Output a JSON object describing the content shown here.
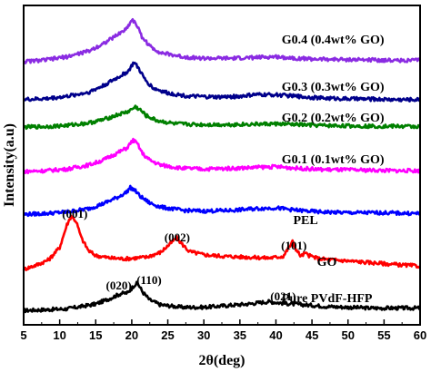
{
  "chart_data": {
    "type": "line",
    "xlabel": "2θ(deg)",
    "ylabel": "Intensity(a.u)",
    "xlim": [
      5,
      60
    ],
    "xticks": [
      "5",
      "10",
      "15",
      "20",
      "25",
      "30",
      "35",
      "40",
      "45",
      "50",
      "55",
      "60"
    ],
    "series": [
      {
        "name": "Pure PVdF-HFP",
        "color": "#000000",
        "offset": 0,
        "points": [
          [
            5,
            0.2
          ],
          [
            8,
            0.3
          ],
          [
            11,
            0.4
          ],
          [
            13,
            0.7
          ],
          [
            15,
            1.0
          ],
          [
            17,
            1.7
          ],
          [
            18.5,
            2.3
          ],
          [
            19.5,
            2.4
          ],
          [
            20.3,
            3.3
          ],
          [
            20.8,
            3.6
          ],
          [
            21.5,
            2.5
          ],
          [
            22.5,
            1.5
          ],
          [
            24,
            0.9
          ],
          [
            27,
            0.6
          ],
          [
            30,
            0.6
          ],
          [
            33,
            0.8
          ],
          [
            36,
            1.0
          ],
          [
            39,
            1.3
          ],
          [
            41,
            1.1
          ],
          [
            44,
            0.9
          ],
          [
            47,
            0.7
          ],
          [
            50,
            0.6
          ],
          [
            53,
            0.5
          ],
          [
            57,
            0.5
          ],
          [
            60,
            0.5
          ]
        ]
      },
      {
        "name": "GO",
        "color": "#ff0000",
        "offset": 5.0,
        "points": [
          [
            5,
            0.3
          ],
          [
            7,
            0.9
          ],
          [
            8.5,
            1.5
          ],
          [
            10,
            3.0
          ],
          [
            11,
            5.8
          ],
          [
            11.6,
            6.9
          ],
          [
            12.3,
            6.2
          ],
          [
            13,
            4.2
          ],
          [
            14,
            2.6
          ],
          [
            15,
            2.0
          ],
          [
            17,
            1.7
          ],
          [
            19,
            1.6
          ],
          [
            22,
            1.8
          ],
          [
            24,
            2.4
          ],
          [
            25.5,
            3.6
          ],
          [
            26.2,
            4.2
          ],
          [
            27,
            3.4
          ],
          [
            28,
            2.5
          ],
          [
            30,
            2.1
          ],
          [
            33,
            1.9
          ],
          [
            36,
            1.8
          ],
          [
            39,
            1.7
          ],
          [
            41,
            1.9
          ],
          [
            41.8,
            3.0
          ],
          [
            42.3,
            3.7
          ],
          [
            42.9,
            2.6
          ],
          [
            43.5,
            1.9
          ],
          [
            44,
            2.3
          ],
          [
            44.6,
            2.0
          ],
          [
            46,
            1.6
          ],
          [
            49,
            1.4
          ],
          [
            52,
            1.2
          ],
          [
            55,
            1.0
          ],
          [
            58,
            0.8
          ],
          [
            60,
            0.7
          ]
        ]
      },
      {
        "name": "PEL",
        "color": "#0000ff",
        "offset": 12.0,
        "points": [
          [
            5,
            0.1
          ],
          [
            8,
            0.2
          ],
          [
            11,
            0.4
          ],
          [
            14,
            0.8
          ],
          [
            16,
            1.4
          ],
          [
            18,
            2.2
          ],
          [
            19.2,
            2.8
          ],
          [
            19.8,
            3.4
          ],
          [
            20.4,
            3.1
          ],
          [
            21.2,
            2.3
          ],
          [
            22.5,
            1.5
          ],
          [
            24,
            1.0
          ],
          [
            27,
            0.6
          ],
          [
            30,
            0.5
          ],
          [
            34,
            0.6
          ],
          [
            37,
            0.8
          ],
          [
            40,
            0.9
          ],
          [
            43,
            0.6
          ],
          [
            46,
            0.4
          ],
          [
            50,
            0.3
          ],
          [
            54,
            0.3
          ],
          [
            57,
            0.25
          ],
          [
            60,
            0.2
          ]
        ]
      },
      {
        "name": "G0.1 (0.1wt% GO)",
        "color": "#ff00ff",
        "offset": 17.3,
        "points": [
          [
            5,
            0.1
          ],
          [
            8,
            0.2
          ],
          [
            11,
            0.4
          ],
          [
            14,
            0.9
          ],
          [
            16,
            1.5
          ],
          [
            18,
            2.4
          ],
          [
            19.3,
            3.0
          ],
          [
            20.2,
            4.0
          ],
          [
            20.8,
            3.5
          ],
          [
            21.5,
            2.3
          ],
          [
            22.5,
            1.5
          ],
          [
            24,
            0.9
          ],
          [
            27,
            0.5
          ],
          [
            30,
            0.4
          ],
          [
            34,
            0.5
          ],
          [
            37,
            0.6
          ],
          [
            40,
            0.7
          ],
          [
            43,
            0.5
          ],
          [
            46,
            0.35
          ],
          [
            50,
            0.3
          ],
          [
            54,
            0.25
          ],
          [
            57,
            0.2
          ],
          [
            60,
            0.2
          ]
        ]
      },
      {
        "name": "G0.2 (0.2wt% GO)",
        "color": "#008000",
        "offset": 22.8,
        "points": [
          [
            5,
            0.1
          ],
          [
            8,
            0.15
          ],
          [
            11,
            0.3
          ],
          [
            14,
            0.6
          ],
          [
            16,
            1.0
          ],
          [
            18,
            1.6
          ],
          [
            19.5,
            2.0
          ],
          [
            20.5,
            2.6
          ],
          [
            21.2,
            2.2
          ],
          [
            22,
            1.5
          ],
          [
            23.5,
            0.9
          ],
          [
            26,
            0.5
          ],
          [
            29,
            0.4
          ],
          [
            33,
            0.4
          ],
          [
            37,
            0.45
          ],
          [
            40,
            0.5
          ],
          [
            43,
            0.4
          ],
          [
            46,
            0.3
          ],
          [
            50,
            0.25
          ],
          [
            54,
            0.2
          ],
          [
            57,
            0.2
          ],
          [
            60,
            0.15
          ]
        ]
      },
      {
        "name": "G0.3 (0.3wt% GO)",
        "color": "#00008b",
        "offset": 26.0,
        "points": [
          [
            5,
            0.3
          ],
          [
            8,
            0.4
          ],
          [
            11,
            0.7
          ],
          [
            14,
            1.2
          ],
          [
            16,
            2.0
          ],
          [
            18,
            3.0
          ],
          [
            19.5,
            3.8
          ],
          [
            20.3,
            4.9
          ],
          [
            21,
            4.1
          ],
          [
            21.8,
            2.8
          ],
          [
            23,
            1.7
          ],
          [
            25,
            1.1
          ],
          [
            28,
            0.7
          ],
          [
            32,
            0.6
          ],
          [
            35,
            0.7
          ],
          [
            37,
            0.9
          ],
          [
            40,
            0.9
          ],
          [
            43,
            0.7
          ],
          [
            46,
            0.5
          ],
          [
            50,
            0.4
          ],
          [
            54,
            0.35
          ],
          [
            57,
            0.3
          ],
          [
            60,
            0.3
          ]
        ]
      },
      {
        "name": "G0.4 (0.4wt% GO)",
        "color": "#8a2be2",
        "offset": 30.8,
        "points": [
          [
            5,
            0.2
          ],
          [
            8,
            0.4
          ],
          [
            11,
            0.8
          ],
          [
            14,
            1.5
          ],
          [
            16,
            2.4
          ],
          [
            18,
            3.5
          ],
          [
            19.3,
            4.3
          ],
          [
            20,
            5.4
          ],
          [
            20.6,
            4.9
          ],
          [
            21.4,
            3.3
          ],
          [
            22.5,
            2.1
          ],
          [
            24,
            1.3
          ],
          [
            27,
            0.8
          ],
          [
            30,
            0.6
          ],
          [
            34,
            0.6
          ],
          [
            37,
            0.7
          ],
          [
            40,
            0.8
          ],
          [
            43,
            0.6
          ],
          [
            46,
            0.5
          ],
          [
            50,
            0.45
          ],
          [
            54,
            0.4
          ],
          [
            57,
            0.35
          ],
          [
            60,
            0.35
          ]
        ]
      }
    ],
    "annotations": [
      {
        "text": "(020)",
        "x": 19.0
      },
      {
        "text": "(110)",
        "x": 21.0
      },
      {
        "text": "(021)",
        "x": 41.0
      },
      {
        "text": "(001)",
        "x": 11.6
      },
      {
        "text": "(002)",
        "x": 26.2
      },
      {
        "text": "(101)",
        "x": 42.3
      }
    ]
  }
}
